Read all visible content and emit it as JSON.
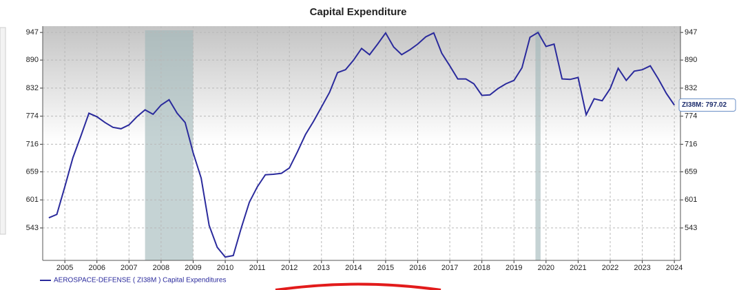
{
  "chart_data": {
    "type": "line",
    "title": "Capital Expenditure",
    "x": [
      2004.5,
      2004.75,
      2005,
      2005.25,
      2005.5,
      2005.75,
      2006,
      2006.25,
      2006.5,
      2006.75,
      2007,
      2007.25,
      2007.5,
      2007.75,
      2008,
      2008.25,
      2008.5,
      2008.75,
      2009,
      2009.25,
      2009.5,
      2009.75,
      2010,
      2010.25,
      2010.5,
      2010.75,
      2011,
      2011.25,
      2011.5,
      2011.75,
      2012,
      2012.25,
      2012.5,
      2012.75,
      2013,
      2013.25,
      2013.5,
      2013.75,
      2014,
      2014.25,
      2014.5,
      2014.75,
      2015,
      2015.25,
      2015.5,
      2015.75,
      2016,
      2016.25,
      2016.5,
      2016.75,
      2017,
      2017.25,
      2017.5,
      2017.75,
      2018,
      2018.25,
      2018.5,
      2018.75,
      2019,
      2019.25,
      2019.5,
      2019.75,
      2020,
      2020.25,
      2020.5,
      2020.75,
      2021,
      2021.25,
      2021.5,
      2021.75,
      2022,
      2022.25,
      2022.5,
      2022.75,
      2023,
      2023.25,
      2023.5,
      2023.75,
      2024
    ],
    "series": [
      {
        "name": "AEROSPACE-DEFENSE ( ZI38M ) Capital Expenditures",
        "color": "#2a2a9c",
        "values": [
          564,
          571,
          628,
          688,
          733,
          780,
          773,
          761,
          751,
          748,
          756,
          773,
          787,
          778,
          797,
          808,
          780,
          761,
          698,
          646,
          548,
          503,
          483,
          486,
          543,
          596,
          628,
          653,
          654,
          656,
          667,
          700,
          736,
          763,
          793,
          823,
          864,
          870,
          890,
          914,
          901,
          923,
          946,
          917,
          901,
          911,
          923,
          938,
          946,
          904,
          878,
          851,
          851,
          841,
          817,
          818,
          831,
          841,
          848,
          874,
          937,
          947,
          918,
          923,
          851,
          850,
          854,
          777,
          810,
          806,
          831,
          873,
          848,
          867,
          870,
          878,
          851,
          821,
          797.02
        ]
      }
    ],
    "annotation": "ZI38M: 797.02",
    "shaded_regions": [
      [
        2007.5,
        2009
      ],
      [
        2019.67,
        2019.83
      ]
    ],
    "xlim": [
      2004.31,
      2024.19
    ],
    "xticks": [
      2005,
      2006,
      2007,
      2008,
      2009,
      2010,
      2011,
      2012,
      2013,
      2014,
      2015,
      2016,
      2017,
      2018,
      2019,
      2020,
      2021,
      2022,
      2023,
      2024
    ],
    "ylim": [
      476,
      960
    ],
    "yticks": [
      543,
      601,
      659,
      716,
      774,
      832,
      890,
      947
    ],
    "grid": true
  }
}
